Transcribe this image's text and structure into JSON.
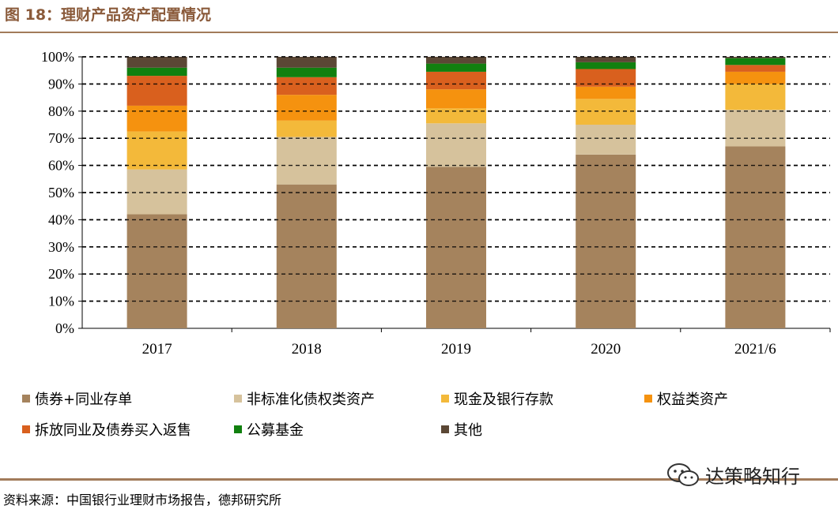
{
  "figure_title": "图 18：理财产品资产配置情况",
  "source": "资料来源：中国银行业理财市场报告，德邦研究所",
  "watermark": "达策略知行",
  "colors": {
    "accent": "#8a5a3a",
    "rule": "#a27b5a"
  },
  "chart_data": {
    "type": "bar",
    "stacked": true,
    "title": "图 18：理财产品资产配置情况",
    "categories": [
      "2017",
      "2018",
      "2019",
      "2020",
      "2021/6"
    ],
    "ylim": [
      0,
      100
    ],
    "yticks": [
      "0%",
      "10%",
      "20%",
      "30%",
      "40%",
      "50%",
      "60%",
      "70%",
      "80%",
      "90%",
      "100%"
    ],
    "grid": true,
    "legend_position": "bottom",
    "series": [
      {
        "name": "债券+同业存单",
        "color": "#a5835d",
        "values": [
          42,
          53,
          59.5,
          64,
          67
        ]
      },
      {
        "name": "非标准化债权类资产",
        "color": "#d6c29c",
        "values": [
          16.5,
          17.5,
          16,
          11,
          13.5
        ]
      },
      {
        "name": "现金及银行存款",
        "color": "#f3b93a",
        "values": [
          14,
          6,
          5.5,
          9.5,
          9.5
        ]
      },
      {
        "name": "权益类资产",
        "color": "#f5920f",
        "values": [
          9.5,
          9.5,
          7,
          4.5,
          4.5
        ]
      },
      {
        "name": "拆放同业及债券买入返售",
        "color": "#d9601e",
        "values": [
          11,
          6.5,
          6.5,
          6.5,
          2.5
        ]
      },
      {
        "name": "公募基金",
        "color": "#11800f",
        "values": [
          3,
          3.5,
          3,
          2.5,
          2.5
        ]
      },
      {
        "name": "其他",
        "color": "#5b4735",
        "values": [
          4,
          4,
          2.5,
          2,
          0.5
        ]
      }
    ]
  }
}
